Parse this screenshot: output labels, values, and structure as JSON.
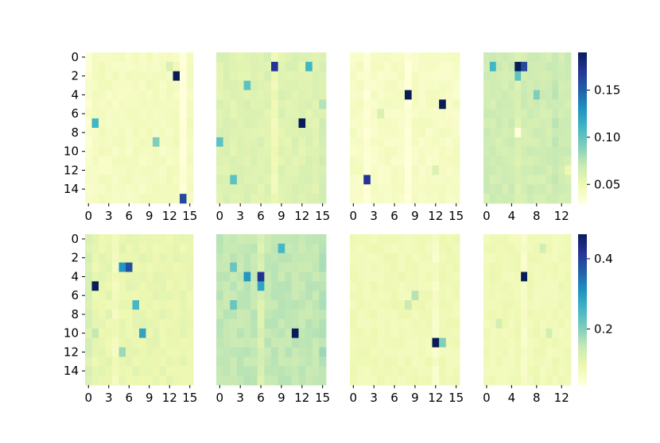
{
  "chart_data": {
    "type": "heatmap",
    "colormap": "YlGnBu",
    "colors": {
      "low": "#ffffd9",
      "mid": "#7fcdbb",
      "high": "#081d58",
      "background": "#ffffff",
      "text": "#000000"
    },
    "rows": [
      {
        "colorbar_ticks": [
          "0.05",
          "0.10",
          "0.15"
        ],
        "colorbar_range": [
          0.03,
          0.19
        ],
        "panels": [
          {
            "n_rows": 16,
            "n_cols": 16,
            "y_ticks": [
              "0",
              "2",
              "4",
              "6",
              "8",
              "10",
              "12",
              "14"
            ],
            "x_ticks": [
              "0",
              "3",
              "6",
              "9",
              "12",
              "15"
            ],
            "base": 0.042,
            "col_bias": {
              "0": -0.006,
              "14": -0.012
            },
            "hot": [
              [
                2,
                13,
                0.19
              ],
              [
                7,
                1,
                0.11
              ],
              [
                9,
                10,
                0.09
              ],
              [
                15,
                14,
                0.16
              ],
              [
                1,
                12,
                0.06
              ]
            ]
          },
          {
            "n_rows": 16,
            "n_cols": 16,
            "y_ticks": [],
            "x_ticks": [
              "0",
              "3",
              "6",
              "9",
              "12",
              "15"
            ],
            "base": 0.058,
            "col_bias": {
              "8": -0.01,
              "15": 0.004
            },
            "hot": [
              [
                1,
                8,
                0.17
              ],
              [
                1,
                13,
                0.11
              ],
              [
                3,
                4,
                0.1
              ],
              [
                7,
                12,
                0.19
              ],
              [
                9,
                0,
                0.1
              ],
              [
                13,
                2,
                0.1
              ],
              [
                5,
                15,
                0.075
              ]
            ]
          },
          {
            "n_rows": 16,
            "n_cols": 16,
            "y_ticks": [],
            "x_ticks": [
              "0",
              "3",
              "6",
              "9",
              "12",
              "15"
            ],
            "base": 0.04,
            "col_bias": {
              "2": -0.008,
              "8": -0.01
            },
            "hot": [
              [
                4,
                8,
                0.19
              ],
              [
                5,
                13,
                0.19
              ],
              [
                13,
                2,
                0.17
              ],
              [
                6,
                4,
                0.06
              ],
              [
                12,
                12,
                0.06
              ]
            ]
          },
          {
            "n_rows": 16,
            "n_cols": 14,
            "y_ticks": [],
            "x_ticks": [
              "0",
              "4",
              "8",
              "12"
            ],
            "base": 0.065,
            "col_bias": {
              "5": -0.006,
              "11": 0.005
            },
            "hot": [
              [
                1,
                5,
                0.19
              ],
              [
                1,
                6,
                0.16
              ],
              [
                1,
                1,
                0.11
              ],
              [
                2,
                5,
                0.1
              ],
              [
                4,
                8,
                0.09
              ],
              [
                8,
                5,
                0.03
              ],
              [
                12,
                13,
                0.05
              ]
            ]
          }
        ]
      },
      {
        "colorbar_ticks": [
          "0.2",
          "0.4"
        ],
        "colorbar_range": [
          0.04,
          0.47
        ],
        "panels": [
          {
            "n_rows": 16,
            "n_cols": 16,
            "y_ticks": [
              "0",
              "2",
              "4",
              "6",
              "8",
              "10",
              "12",
              "14"
            ],
            "x_ticks": [
              "0",
              "3",
              "6",
              "9",
              "12",
              "15"
            ],
            "base": 0.1,
            "col_bias": {
              "0": 0.02,
              "4": -0.02
            },
            "hot": [
              [
                3,
                5,
                0.3
              ],
              [
                3,
                6,
                0.38
              ],
              [
                5,
                1,
                0.47
              ],
              [
                7,
                7,
                0.25
              ],
              [
                10,
                8,
                0.28
              ],
              [
                10,
                1,
                0.15
              ],
              [
                12,
                5,
                0.18
              ]
            ]
          },
          {
            "n_rows": 16,
            "n_cols": 16,
            "y_ticks": [],
            "x_ticks": [
              "0",
              "3",
              "6",
              "9",
              "12",
              "15"
            ],
            "base": 0.15,
            "col_bias": {
              "6": -0.03,
              "15": 0.01
            },
            "hot": [
              [
                1,
                9,
                0.25
              ],
              [
                4,
                4,
                0.3
              ],
              [
                4,
                6,
                0.42
              ],
              [
                5,
                6,
                0.28
              ],
              [
                10,
                11,
                0.47
              ],
              [
                3,
                2,
                0.22
              ],
              [
                7,
                2,
                0.22
              ],
              [
                12,
                15,
                0.18
              ]
            ]
          },
          {
            "n_rows": 16,
            "n_cols": 16,
            "y_ticks": [],
            "x_ticks": [
              "0",
              "3",
              "6",
              "9",
              "12",
              "15"
            ],
            "base": 0.085,
            "col_bias": {
              "12": -0.02
            },
            "hot": [
              [
                11,
                12,
                0.47
              ],
              [
                11,
                13,
                0.2
              ],
              [
                6,
                9,
                0.16
              ],
              [
                7,
                8,
                0.14
              ]
            ]
          },
          {
            "n_rows": 16,
            "n_cols": 14,
            "y_ticks": [],
            "x_ticks": [
              "0",
              "4",
              "8",
              "12"
            ],
            "base": 0.085,
            "col_bias": {
              "6": -0.025
            },
            "hot": [
              [
                4,
                6,
                0.47
              ],
              [
                1,
                9,
                0.13
              ],
              [
                9,
                2,
                0.13
              ],
              [
                10,
                10,
                0.13
              ]
            ]
          }
        ]
      }
    ]
  }
}
